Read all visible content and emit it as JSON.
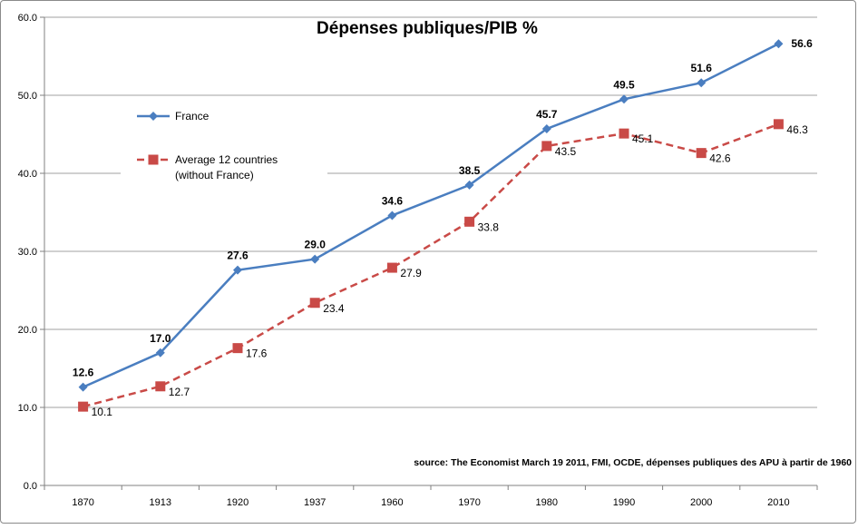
{
  "chart_data": {
    "type": "line",
    "title": "Dépenses publiques/PIB %",
    "categories": [
      "1870",
      "1913",
      "1920",
      "1937",
      "1960",
      "1970",
      "1980",
      "1990",
      "2000",
      "2010"
    ],
    "ylim": [
      0,
      60
    ],
    "yticks": [
      "0.0",
      "10.0",
      "20.0",
      "30.0",
      "40.0",
      "50.0",
      "60.0"
    ],
    "grid": "horizontal",
    "legend_position": "top-left",
    "series": [
      {
        "name": "France",
        "color": "#4a7ec0",
        "style": "solid",
        "marker": "diamond",
        "values": [
          12.6,
          17.0,
          27.6,
          29.0,
          34.6,
          38.5,
          45.7,
          49.5,
          51.6,
          56.6
        ],
        "labels": [
          "12.6",
          "17.0",
          "27.6",
          "29.0",
          "34.6",
          "38.5",
          "45.7",
          "49.5",
          "51.6",
          "56.6"
        ]
      },
      {
        "name": "Average 12 countries (without France)",
        "legend_lines": [
          "Average 12 countries",
          "(without France)"
        ],
        "color": "#c94a47",
        "style": "dashed",
        "marker": "square",
        "values": [
          10.1,
          12.7,
          17.6,
          23.4,
          27.9,
          33.8,
          43.5,
          45.1,
          42.6,
          46.3
        ],
        "labels": [
          "10.1",
          "12.7",
          "17.6",
          "23.4",
          "27.9",
          "33.8",
          "43.5",
          "45.1",
          "42.6",
          "46.3"
        ]
      }
    ],
    "source": "source: The Economist March 19 2011,  FMI, OCDE, dépenses publiques des APU à partir de 1960"
  }
}
